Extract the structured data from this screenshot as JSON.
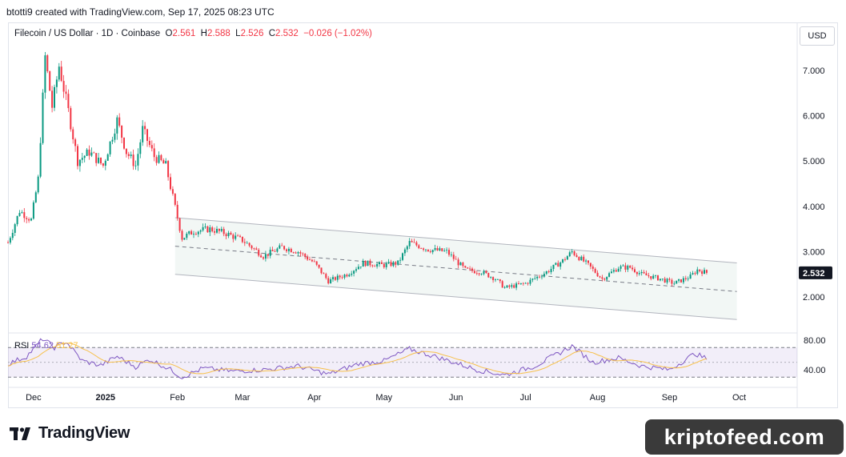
{
  "header": {
    "author_line": "btotti9 created with TradingView.com, Sep 17, 2025 08:23 UTC"
  },
  "legend": {
    "symbol": "Filecoin / US Dollar · 1D · Coinbase",
    "open_label": "O",
    "open": "2.561",
    "high_label": "H",
    "high": "2.588",
    "low_label": "L",
    "low": "2.526",
    "close_label": "C",
    "close": "2.532",
    "change": "−0.026 (−1.02%)"
  },
  "currency_button": "USD",
  "last_price_label": "2.532",
  "rsi_legend": {
    "name": "RSI",
    "value": "54.62",
    "ma_value": "51.27"
  },
  "footer": {
    "brand": "TradingView",
    "watermark": "kriptofeed.com"
  },
  "colors": {
    "up": "#089981",
    "down": "#f23645",
    "rsi": "#7e57c2",
    "rsi_ma": "#f7c04a",
    "rsi_band": "#7e57c2",
    "channel": "#b2b5be"
  },
  "chart_data": {
    "type": "candlestick",
    "price_axis": {
      "ticks": [
        "7.000",
        "6.000",
        "5.000",
        "4.000",
        "3.000",
        "2.000"
      ],
      "values": [
        7,
        6,
        5,
        4,
        3,
        2
      ],
      "range": [
        1.3,
        7.7
      ]
    },
    "rsi_axis": {
      "ticks": [
        "80.00",
        "40.00"
      ],
      "values": [
        80,
        40
      ],
      "range": [
        25,
        90
      ],
      "bands": [
        70,
        30
      ]
    },
    "x_axis": {
      "labels": [
        "Dec",
        "2025",
        "Feb",
        "Mar",
        "Apr",
        "May",
        "Jun",
        "Jul",
        "Aug",
        "Sep",
        "Oct"
      ]
    },
    "channel": {
      "upper": [
        [
          "2025-01-31",
          3.75
        ],
        [
          "2025-09-30",
          2.75
        ]
      ],
      "middle": [
        [
          "2025-01-31",
          3.12
        ],
        [
          "2025-09-30",
          2.12
        ]
      ],
      "lower": [
        [
          "2025-01-31",
          2.5
        ],
        [
          "2025-09-30",
          1.5
        ]
      ]
    },
    "price_anchors": [
      [
        "2024-11-20",
        3.2
      ],
      [
        "2024-11-25",
        3.9
      ],
      [
        "2024-11-30",
        3.7
      ],
      [
        "2024-12-03",
        4.6
      ],
      [
        "2024-12-06",
        7.3
      ],
      [
        "2024-12-09",
        6.2
      ],
      [
        "2024-12-12",
        7.1
      ],
      [
        "2024-12-16",
        6.1
      ],
      [
        "2024-12-20",
        5.0
      ],
      [
        "2024-12-25",
        5.2
      ],
      [
        "2024-12-31",
        4.9
      ],
      [
        "2025-01-06",
        5.9
      ],
      [
        "2025-01-10",
        5.2
      ],
      [
        "2025-01-14",
        4.9
      ],
      [
        "2025-01-17",
        5.7
      ],
      [
        "2025-01-22",
        5.1
      ],
      [
        "2025-01-27",
        4.9
      ],
      [
        "2025-01-30",
        4.2
      ],
      [
        "2025-02-03",
        3.3
      ],
      [
        "2025-02-08",
        3.45
      ],
      [
        "2025-02-15",
        3.5
      ],
      [
        "2025-02-22",
        3.4
      ],
      [
        "2025-03-01",
        3.25
      ],
      [
        "2025-03-05",
        3.1
      ],
      [
        "2025-03-10",
        2.9
      ],
      [
        "2025-03-18",
        3.1
      ],
      [
        "2025-03-25",
        3.0
      ],
      [
        "2025-04-01",
        2.75
      ],
      [
        "2025-04-07",
        2.35
      ],
      [
        "2025-04-15",
        2.5
      ],
      [
        "2025-04-22",
        2.75
      ],
      [
        "2025-05-01",
        2.7
      ],
      [
        "2025-05-07",
        2.75
      ],
      [
        "2025-05-12",
        3.2
      ],
      [
        "2025-05-20",
        3.05
      ],
      [
        "2025-05-28",
        3.0
      ],
      [
        "2025-06-05",
        2.6
      ],
      [
        "2025-06-12",
        2.55
      ],
      [
        "2025-06-18",
        2.4
      ],
      [
        "2025-06-22",
        2.2
      ],
      [
        "2025-07-01",
        2.3
      ],
      [
        "2025-07-10",
        2.55
      ],
      [
        "2025-07-17",
        2.8
      ],
      [
        "2025-07-21",
        3.0
      ],
      [
        "2025-07-28",
        2.7
      ],
      [
        "2025-08-03",
        2.4
      ],
      [
        "2025-08-10",
        2.65
      ],
      [
        "2025-08-15",
        2.65
      ],
      [
        "2025-08-20",
        2.5
      ],
      [
        "2025-08-28",
        2.4
      ],
      [
        "2025-09-03",
        2.3
      ],
      [
        "2025-09-10",
        2.45
      ],
      [
        "2025-09-13",
        2.6
      ],
      [
        "2025-09-17",
        2.532
      ]
    ],
    "rsi_anchors": [
      [
        "2024-11-20",
        48
      ],
      [
        "2024-11-28",
        58
      ],
      [
        "2024-12-05",
        82
      ],
      [
        "2024-12-10",
        70
      ],
      [
        "2024-12-15",
        78
      ],
      [
        "2024-12-22",
        52
      ],
      [
        "2024-12-30",
        46
      ],
      [
        "2025-01-06",
        58
      ],
      [
        "2025-01-14",
        44
      ],
      [
        "2025-01-20",
        54
      ],
      [
        "2025-01-28",
        42
      ],
      [
        "2025-02-03",
        30
      ],
      [
        "2025-02-12",
        42
      ],
      [
        "2025-02-25",
        38
      ],
      [
        "2025-03-10",
        40
      ],
      [
        "2025-03-25",
        45
      ],
      [
        "2025-04-07",
        34
      ],
      [
        "2025-04-20",
        48
      ],
      [
        "2025-05-01",
        52
      ],
      [
        "2025-05-12",
        68
      ],
      [
        "2025-05-25",
        56
      ],
      [
        "2025-06-10",
        40
      ],
      [
        "2025-06-22",
        33
      ],
      [
        "2025-07-05",
        45
      ],
      [
        "2025-07-21",
        72
      ],
      [
        "2025-07-30",
        50
      ],
      [
        "2025-08-10",
        56
      ],
      [
        "2025-08-20",
        45
      ],
      [
        "2025-09-01",
        40
      ],
      [
        "2025-09-12",
        62
      ],
      [
        "2025-09-17",
        54.62
      ]
    ]
  }
}
